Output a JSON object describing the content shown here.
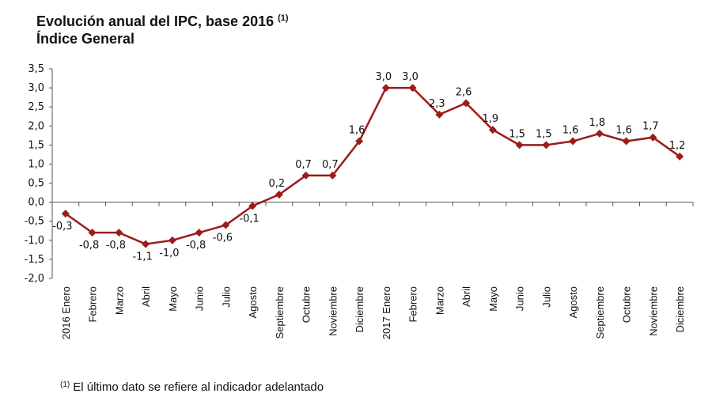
{
  "chart_data": {
    "type": "line",
    "title": "Evolución anual del IPC, base 2016",
    "title_note": "(1)",
    "subtitle": "Índice General",
    "categories": [
      "2016 Enero",
      "Febrero",
      "Marzo",
      "Abril",
      "Mayo",
      "Junio",
      "Julio",
      "Agosto",
      "Septiembre",
      "Octubre",
      "Noviembre",
      "Diciembre",
      "2017 Enero",
      "Febrero",
      "Marzo",
      "Abril",
      "Mayo",
      "Junio",
      "Julio",
      "Agosto",
      "Septiembre",
      "Octubre",
      "Noviembre",
      "Diciembre"
    ],
    "values": [
      -0.3,
      -0.8,
      -0.8,
      -1.1,
      -1.0,
      -0.8,
      -0.6,
      -0.1,
      0.2,
      0.7,
      0.7,
      1.6,
      3.0,
      3.0,
      2.3,
      2.6,
      1.9,
      1.5,
      1.5,
      1.6,
      1.8,
      1.6,
      1.7,
      1.2
    ],
    "data_labels": [
      "-0,3",
      "-0,8",
      "-0,8",
      "-1,1",
      "-1,0",
      "-0,8",
      "-0,6",
      "-0,1",
      "0,2",
      "0,7",
      "0,7",
      "1,6",
      "3,0",
      "3,0",
      "2,3",
      "2,6",
      "1,9",
      "1,5",
      "1,5",
      "1,6",
      "1,8",
      "1,6",
      "1,7",
      "1,2"
    ],
    "ylim": [
      -2.0,
      3.5
    ],
    "yticks": [
      "3,5",
      "3,0",
      "2,5",
      "2,0",
      "1,5",
      "1,0",
      "0,5",
      "0,0",
      "-0,5",
      "-1,0",
      "-1,5",
      "-2,0"
    ],
    "xlabel": "",
    "ylabel": "",
    "grid": false,
    "line_color": "#9b1c1c",
    "marker": "diamond"
  },
  "footnote": {
    "mark": "(1)",
    "text": "El último dato se refiere al indicador adelantado"
  }
}
